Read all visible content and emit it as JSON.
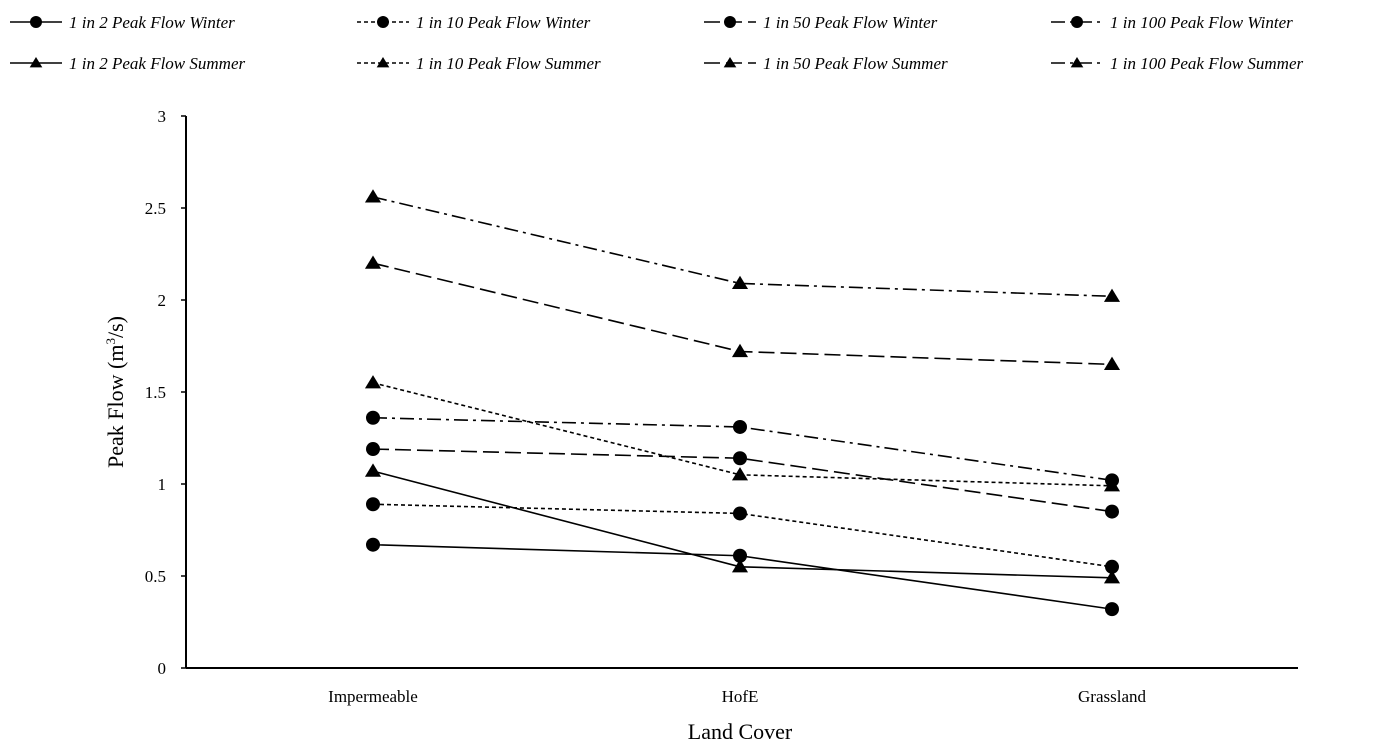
{
  "chart_data": {
    "type": "line",
    "xlabel": "Land Cover",
    "ylabel_main": "Peak Flow (m",
    "ylabel_sup": "3",
    "ylabel_end": "/s)",
    "categories": [
      "Impermeable",
      "HofE",
      "Grassland"
    ],
    "ylim": [
      0,
      3
    ],
    "yticks": [
      "0",
      "0.5",
      "1",
      "1.5",
      "2",
      "2.5",
      "3"
    ],
    "legend_position": "top",
    "grid": false,
    "series": [
      {
        "name": "1 in 2 Peak Flow Winter",
        "values": [
          0.67,
          0.61,
          0.32
        ],
        "marker": "circle",
        "dash": "solid"
      },
      {
        "name": "1 in 10 Peak Flow Winter",
        "values": [
          0.89,
          0.84,
          0.55
        ],
        "marker": "circle",
        "dash": "dotted"
      },
      {
        "name": "1 in 50 Peak Flow Winter",
        "values": [
          1.19,
          1.14,
          0.85
        ],
        "marker": "circle",
        "dash": "longdash"
      },
      {
        "name": "1 in 100 Peak Flow Winter",
        "values": [
          1.36,
          1.31,
          1.02
        ],
        "marker": "circle",
        "dash": "dashdot"
      },
      {
        "name": "1 in 2 Peak Flow Summer",
        "values": [
          1.07,
          0.55,
          0.49
        ],
        "marker": "triangle",
        "dash": "solid"
      },
      {
        "name": "1 in 10 Peak Flow Summer",
        "values": [
          1.55,
          1.05,
          0.99
        ],
        "marker": "triangle",
        "dash": "dotted"
      },
      {
        "name": "1 in 50 Peak Flow Summer",
        "values": [
          2.2,
          1.72,
          1.65
        ],
        "marker": "triangle",
        "dash": "longdash"
      },
      {
        "name": "1 in 100 Peak Flow Summer",
        "values": [
          2.56,
          2.09,
          2.02
        ],
        "marker": "triangle",
        "dash": "dashdot"
      }
    ]
  }
}
